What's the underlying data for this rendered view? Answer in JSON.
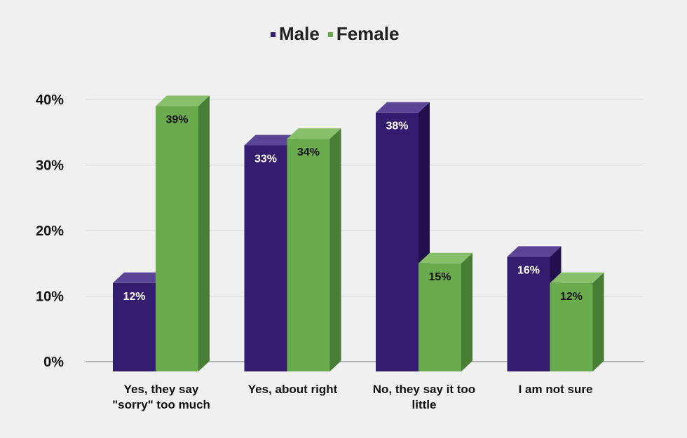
{
  "chart_data": {
    "type": "bar",
    "style": "3d-clustered-column",
    "categories": [
      [
        "Yes, they say",
        "\"sorry\" too much"
      ],
      [
        "Yes, about right"
      ],
      [
        "No, they say it too",
        "little"
      ],
      [
        "I am not sure"
      ]
    ],
    "series": [
      {
        "name": "Male",
        "values": [
          12,
          33,
          38,
          16
        ],
        "color": "#341c6e",
        "top_color": "#5b4596",
        "side_color": "#22114e",
        "label_color": "#ffffff"
      },
      {
        "name": "Female",
        "values": [
          39,
          34,
          15,
          12
        ],
        "color": "#6aab4e",
        "top_color": "#87bf6b",
        "side_color": "#487d35",
        "label_color": "#111111"
      }
    ],
    "value_format": "{v}%",
    "y_ticks": [
      "0%",
      "10%",
      "20%",
      "30%",
      "40%"
    ],
    "ylim": [
      0,
      40
    ],
    "grid": true,
    "legend_position": "top-center",
    "title": "",
    "xlabel": "",
    "ylabel": ""
  }
}
